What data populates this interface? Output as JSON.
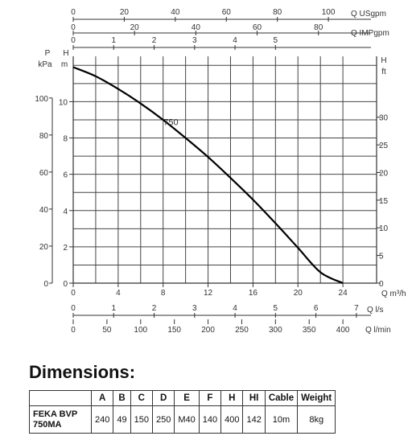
{
  "chart_data": {
    "type": "line",
    "series": [
      {
        "name": "750",
        "x": [
          0,
          2,
          4,
          6,
          8,
          10,
          12,
          14,
          16,
          18,
          20,
          22,
          24
        ],
        "y": [
          11.9,
          11.4,
          10.7,
          9.9,
          9.0,
          8.0,
          6.95,
          5.8,
          4.6,
          3.3,
          1.95,
          0.6,
          0
        ]
      }
    ],
    "xlim": [
      0,
      27
    ],
    "ylim": [
      0,
      12.5
    ],
    "grid": true,
    "axes": {
      "m3h": {
        "label": "Q m³/h",
        "ticks": [
          "0",
          "4",
          "8",
          "12",
          "16",
          "20",
          "24"
        ]
      },
      "ls": {
        "label": "Q l/s",
        "ticks": [
          "0",
          "1",
          "2",
          "3",
          "4",
          "5",
          "6",
          "7"
        ]
      },
      "lmin": {
        "label": "Q l/min",
        "ticks": [
          "0",
          "50",
          "100",
          "150",
          "200",
          "250",
          "300",
          "350",
          "400"
        ]
      },
      "usgpm": {
        "label": "Q USgpm",
        "ticks": [
          "0",
          "20",
          "40",
          "60",
          "80",
          "100"
        ]
      },
      "impgpm": {
        "label": "Q IMPgpm",
        "ticks": [
          "0",
          "20",
          "40",
          "60",
          "80"
        ]
      },
      "kgs": {
        "ticks": [
          "0",
          "1",
          "2",
          "3",
          "4",
          "5"
        ]
      },
      "kpa": {
        "label_1": "P",
        "label_2": "kPa",
        "ticks": [
          "0",
          "20",
          "40",
          "60",
          "80",
          "100"
        ]
      },
      "hm": {
        "label_1": "H",
        "label_2": "m",
        "ticks": [
          "0",
          "2",
          "4",
          "6",
          "8",
          "10"
        ]
      },
      "hft": {
        "label_1": "H",
        "label_2": "ft",
        "ticks": [
          "0",
          "5",
          "10",
          "15",
          "20",
          "25",
          "30"
        ]
      }
    }
  },
  "dimensions": {
    "heading": "Dimensions:",
    "headers": [
      "A",
      "B",
      "C",
      "D",
      "E",
      "F",
      "H",
      "HI",
      "Cable",
      "Weight"
    ],
    "model_line1": "FEKA BVP",
    "model_line2": "750MA",
    "values": [
      "240",
      "49",
      "150",
      "250",
      "M40",
      "140",
      "400",
      "142",
      "10m",
      "8kg"
    ]
  }
}
